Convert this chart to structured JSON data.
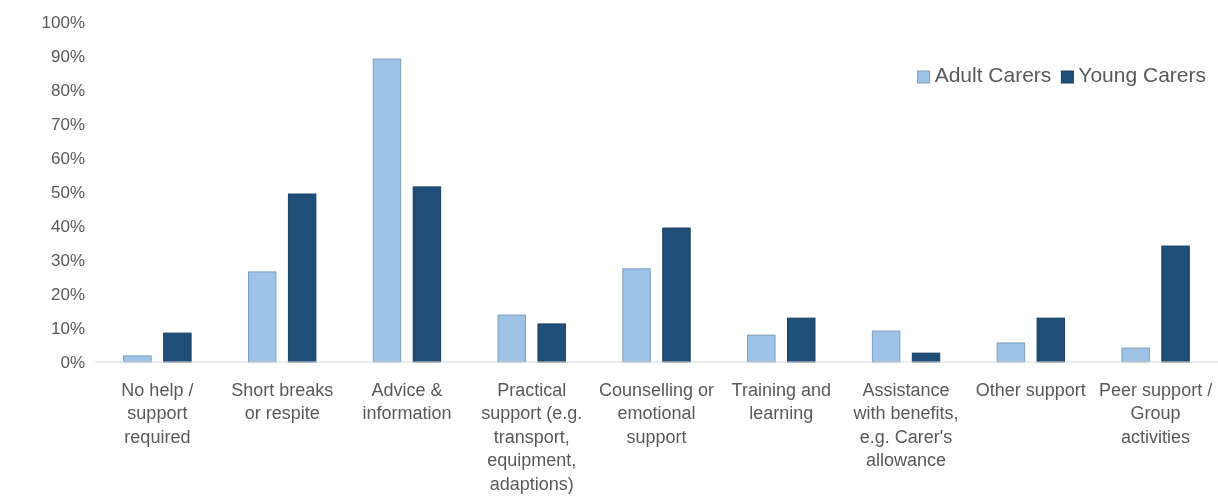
{
  "chart_data": {
    "type": "bar",
    "categories": [
      "No help / support required",
      "Short breaks or respite",
      "Advice & information",
      "Practical support (e.g. transport, equipment, adaptions)",
      "Counselling or emotional support",
      "Training and learning",
      "Assistance with benefits, e.g. Carer's allowance",
      "Other support",
      "Peer support / Group activities"
    ],
    "series": [
      {
        "name": "Adult Carers",
        "color": "#9dc3e6",
        "values": [
          1.8,
          26.5,
          89.1,
          13.8,
          27.4,
          7.9,
          9.1,
          5.6,
          4.1
        ]
      },
      {
        "name": "Young Carers",
        "color": "#1f4e79",
        "values": [
          8.5,
          49.4,
          51.5,
          11.2,
          39.4,
          12.9,
          2.6,
          12.9,
          34.1
        ]
      }
    ],
    "ylim": [
      0,
      100
    ],
    "yticks": [
      {
        "value": 0,
        "label": "0%"
      },
      {
        "value": 10,
        "label": "10%"
      },
      {
        "value": 20,
        "label": "20%"
      },
      {
        "value": 30,
        "label": "30%"
      },
      {
        "value": 40,
        "label": "40%"
      },
      {
        "value": 50,
        "label": "50%"
      },
      {
        "value": 60,
        "label": "60%"
      },
      {
        "value": 70,
        "label": "70%"
      },
      {
        "value": 80,
        "label": "80%"
      },
      {
        "value": 90,
        "label": "90%"
      },
      {
        "value": 100,
        "label": "100%"
      }
    ],
    "grid": false,
    "legend": "top right"
  }
}
